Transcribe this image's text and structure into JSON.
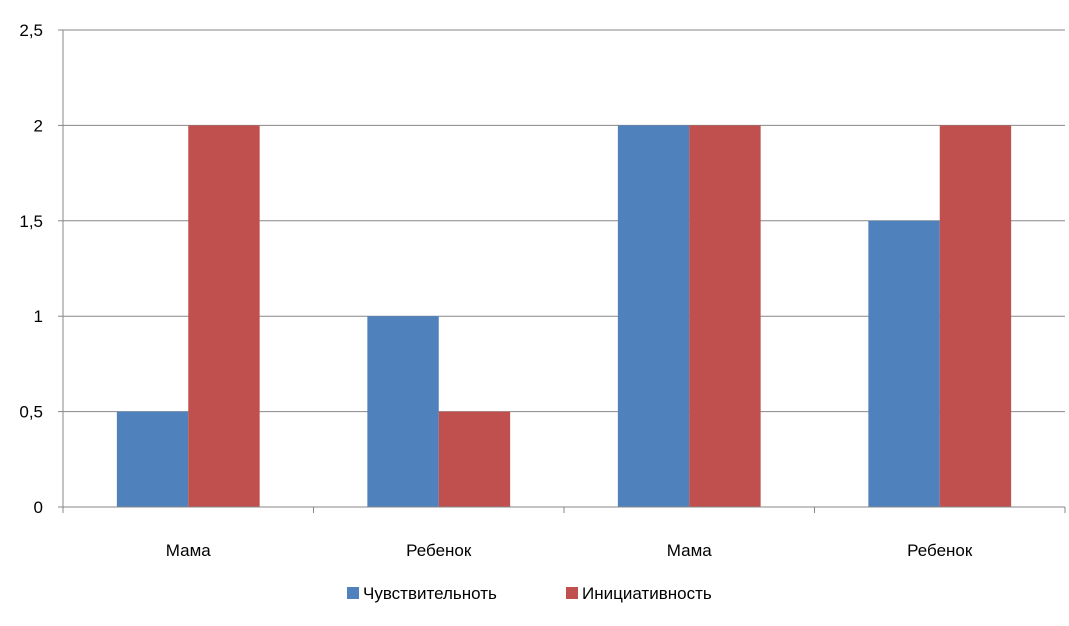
{
  "chart_data": {
    "type": "bar",
    "categories": [
      "Мама",
      "Ребенок",
      "Мама",
      "Ребенок"
    ],
    "series": [
      {
        "name": "Чувствительноть",
        "values": [
          0.5,
          1,
          2,
          1.5
        ],
        "color": "#4F81BD"
      },
      {
        "name": "Инициативность",
        "values": [
          2,
          0.5,
          2,
          2
        ],
        "color": "#C0504D"
      }
    ],
    "ylim": [
      0,
      2.5
    ],
    "yticks": [
      "0",
      "0,5",
      "1",
      "1,5",
      "2",
      "2,5"
    ],
    "grid": true,
    "legend": "bottom"
  }
}
